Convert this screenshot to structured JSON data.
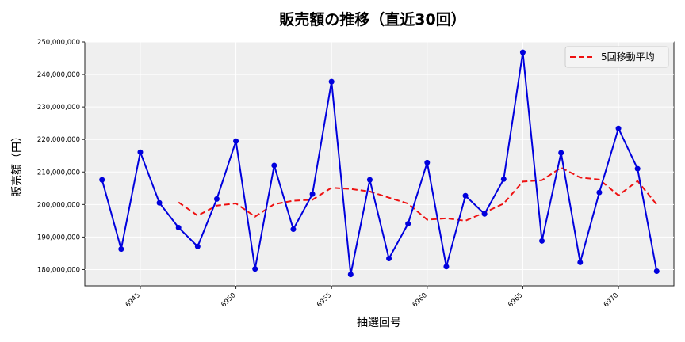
{
  "chart_data": {
    "type": "line",
    "title": "販売額の推移（直近30回）",
    "xlabel": "抽選回号",
    "ylabel": "販売額（円）",
    "ylim": [
      175000000,
      250000000
    ],
    "xlim": [
      6942.1,
      6972.9
    ],
    "grid": true,
    "legend_position": "upper right",
    "x_ticks": [
      6945,
      6950,
      6955,
      6960,
      6965,
      6970
    ],
    "y_ticks": [
      180000000,
      190000000,
      200000000,
      210000000,
      220000000,
      230000000,
      240000000,
      250000000
    ],
    "y_tick_labels": [
      "180,000,000",
      "190,000,000",
      "200,000,000",
      "210,000,000",
      "220,000,000",
      "230,000,000",
      "240,000,000",
      "250,000,000"
    ],
    "x": [
      6943,
      6944,
      6945,
      6946,
      6947,
      6948,
      6949,
      6950,
      6951,
      6952,
      6953,
      6954,
      6955,
      6956,
      6957,
      6958,
      6959,
      6960,
      6961,
      6962,
      6963,
      6964,
      6965,
      6966,
      6967,
      6968,
      6969,
      6970,
      6971,
      6972
    ],
    "series": [
      {
        "name": "販売額",
        "color": "#0000dd",
        "style": "solid-marker",
        "values": [
          207600000,
          186300000,
          216100000,
          200500000,
          192900000,
          187100000,
          201700000,
          219500000,
          180200000,
          212000000,
          192400000,
          203200000,
          237800000,
          178500000,
          207600000,
          183400000,
          194100000,
          212900000,
          180900000,
          202700000,
          197100000,
          207800000,
          246800000,
          188800000,
          215900000,
          182200000,
          203700000,
          223400000,
          211000000,
          179500000
        ]
      },
      {
        "name": "5回移動平均",
        "color": "#ee1111",
        "style": "dashed",
        "values": [
          null,
          null,
          null,
          null,
          200680000,
          196580000,
          199660000,
          200340000,
          196280000,
          200100000,
          201160000,
          201460000,
          205160000,
          204780000,
          204000000,
          202100000,
          200280000,
          195320000,
          195740000,
          195000000,
          197540000,
          200280000,
          207060000,
          207460000,
          211340000,
          208300000,
          207680000,
          202800000,
          207240000,
          200000000
        ]
      }
    ]
  },
  "legend": {
    "label": "5回移動平均"
  }
}
